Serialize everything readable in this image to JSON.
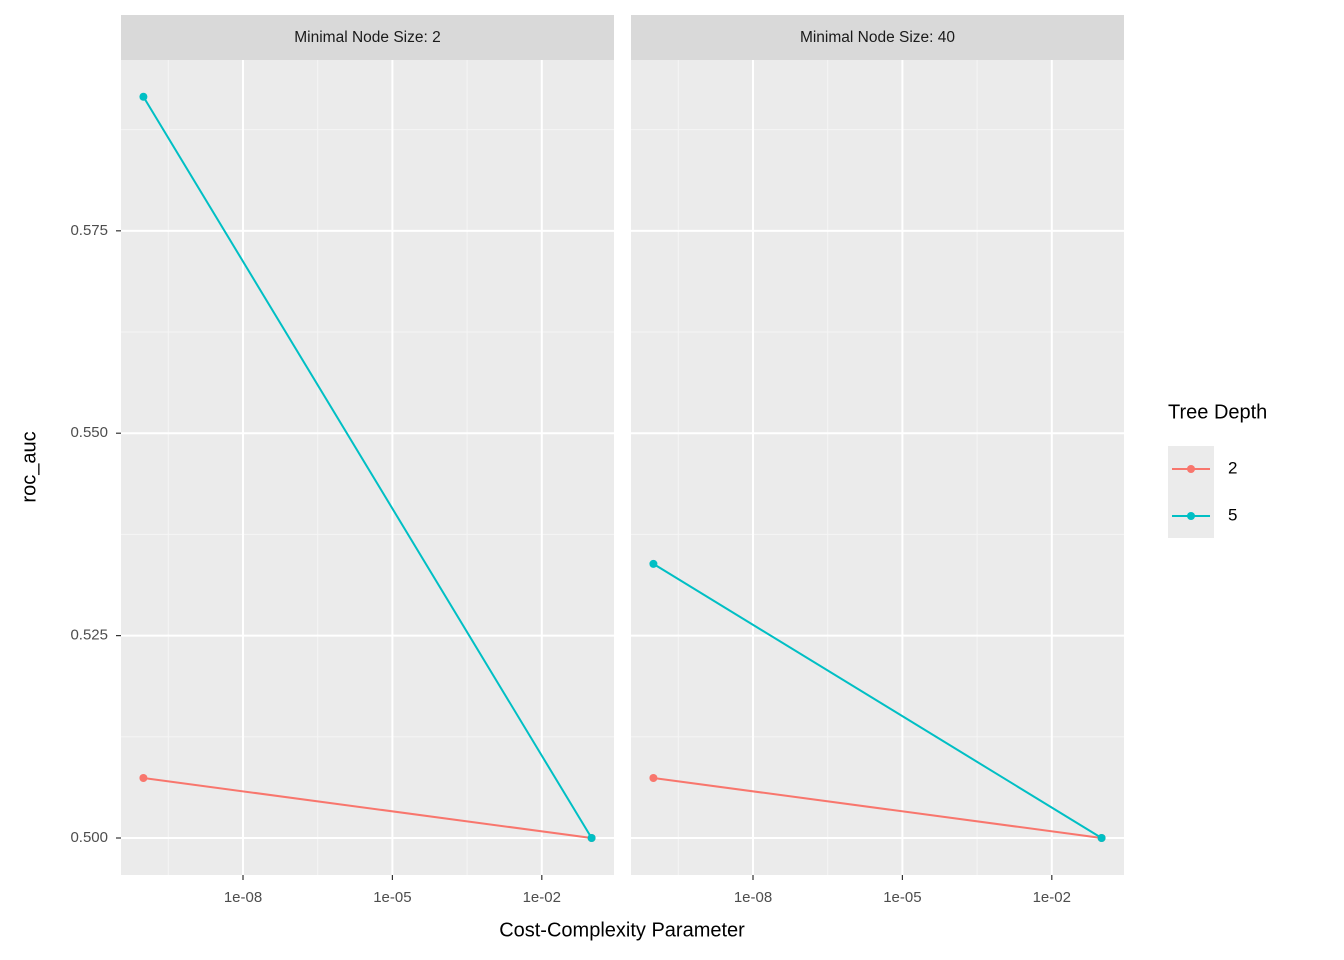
{
  "x_label": "Cost-Complexity Parameter",
  "y_label": "roc_auc",
  "ylim": [
    0.49543,
    0.5961
  ],
  "yticks": [
    {
      "value": 0.5,
      "label": "0.500"
    },
    0.525,
    {
      "value": 0.55,
      "label": "0.550"
    },
    0.575
  ],
  "grid": true,
  "legend": {
    "title": "Tree Depth",
    "position": "right",
    "entries": [
      {
        "name": "2",
        "color": "#F8766D"
      },
      {
        "name": "5",
        "color": "#00BFC4"
      }
    ]
  },
  "chart_data": [
    {
      "type": "line",
      "title": "Minimal Node Size: 2",
      "log_x": true,
      "x": [
        1e-10,
        0.1
      ],
      "xlim": [
        3.548e-11,
        0.2818
      ],
      "xticks": [
        {
          "value": 1e-08,
          "label": "1e-08"
        },
        {
          "value": 1e-05,
          "label": "1e-05"
        },
        {
          "value": 0.01,
          "label": "1e-02"
        }
      ],
      "series": [
        {
          "values": [
            0.50741,
            0.5
          ]
        },
        {
          "values": [
            0.59156,
            0.5
          ]
        }
      ]
    },
    {
      "type": "line",
      "title": "Minimal Node Size: 40",
      "log_x": true,
      "x": [
        1e-10,
        0.1
      ],
      "xlim": [
        3.548e-11,
        0.2818
      ],
      "xticks": [
        {
          "value": 1e-08,
          "label": "1e-08"
        },
        {
          "value": 1e-05,
          "label": "1e-05"
        },
        {
          "value": 0.01,
          "label": "1e-02"
        }
      ],
      "series": [
        {
          "values": [
            0.50741,
            0.5
          ]
        },
        {
          "values": [
            0.53386,
            0.5
          ]
        }
      ]
    }
  ]
}
